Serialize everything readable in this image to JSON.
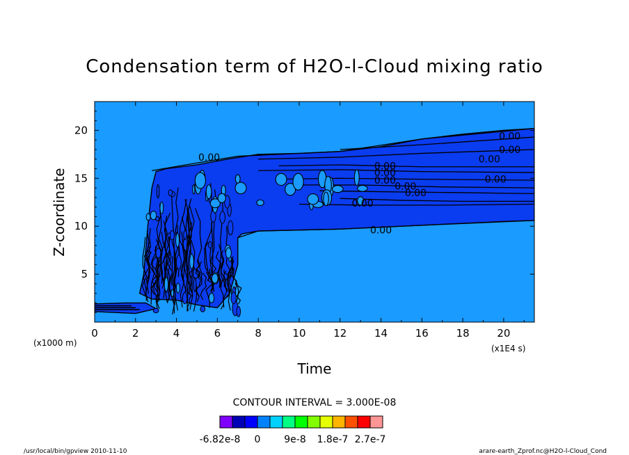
{
  "chart_data": {
    "type": "heatmap",
    "title": "Condensation term of H2O-l-Cloud mixing ratio",
    "xlabel": "Time",
    "ylabel": "Z-coordinate",
    "x_unit_note": "(x1E4 s)",
    "y_unit_note": "(x1000 m)",
    "xlim": [
      0,
      21.5
    ],
    "ylim": [
      0,
      23
    ],
    "x_ticks": [
      0,
      2,
      4,
      6,
      8,
      10,
      12,
      14,
      16,
      18,
      20
    ],
    "y_ticks": [
      5,
      10,
      15,
      20
    ],
    "background_level": "0",
    "contour_labels": [
      {
        "x": 20.3,
        "y": 19.4,
        "text": "0.00"
      },
      {
        "x": 20.3,
        "y": 18.0,
        "text": "0.00"
      },
      {
        "x": 19.3,
        "y": 17.0,
        "text": "0.00"
      },
      {
        "x": 19.6,
        "y": 14.9,
        "text": "0.00"
      },
      {
        "x": 14.2,
        "y": 16.3,
        "text": "0.00"
      },
      {
        "x": 14.2,
        "y": 15.6,
        "text": "0.00"
      },
      {
        "x": 14.2,
        "y": 14.8,
        "text": "0.00"
      },
      {
        "x": 15.2,
        "y": 14.2,
        "text": "0.00"
      },
      {
        "x": 15.7,
        "y": 13.5,
        "text": "0.00"
      },
      {
        "x": 13.1,
        "y": 12.4,
        "text": "0.00"
      },
      {
        "x": 14.0,
        "y": 9.6,
        "text": "0.00"
      },
      {
        "x": 5.6,
        "y": 17.2,
        "text": "0.00"
      }
    ],
    "contour_interval": "CONTOUR INTERVAL = 3.000E-08",
    "colorbar": {
      "colors": [
        "#7f00ff",
        "#0000b4",
        "#0000ff",
        "#0082ff",
        "#00d2ff",
        "#00ff82",
        "#00ff00",
        "#82ff00",
        "#e6ff00",
        "#ffb400",
        "#ff5000",
        "#ff0000",
        "#ff9696"
      ],
      "tick_labels": [
        "-6.82e-8",
        "0",
        "9e-8",
        "1.8e-7",
        "2.7e-7"
      ]
    },
    "colors": {
      "background_field": "#1a9bff",
      "condensation_field": "#0a3cf0"
    }
  },
  "footer": {
    "left": "/usr/local/bin/gpview  2010-11-10",
    "right": "arare-earth_Zprof.nc@H2O-l-Cloud_Cond"
  }
}
